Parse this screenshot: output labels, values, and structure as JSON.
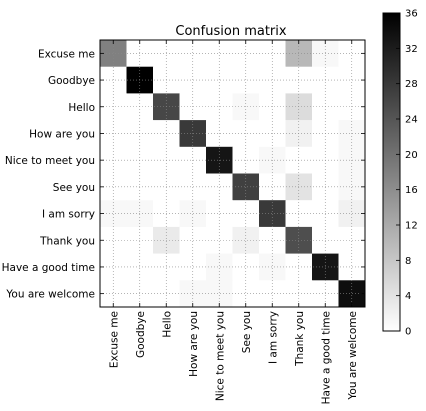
{
  "chart_data": {
    "type": "heatmap",
    "title": "Confusion matrix",
    "xlabel": "",
    "ylabel": "",
    "rows": [
      "Excuse me",
      "Goodbye",
      "Hello",
      "How are you",
      "Nice to meet you",
      "See you",
      "I am sorry",
      "Thank you",
      "Have a good time",
      "You are welcome"
    ],
    "columns": [
      "Excuse me",
      "Goodbye",
      "Hello",
      "How are you",
      "Nice to meet you",
      "See you",
      "I am sorry",
      "Thank you",
      "Have a good time",
      "You are welcome"
    ],
    "values": [
      [
        18,
        0,
        0,
        0,
        0,
        0,
        0,
        10,
        1,
        0
      ],
      [
        0,
        36,
        0,
        0,
        0,
        0,
        0,
        0,
        0,
        0
      ],
      [
        0,
        0,
        26,
        0,
        0,
        1,
        0,
        5,
        0,
        0
      ],
      [
        0,
        0,
        0,
        28,
        0,
        0,
        0,
        2,
        0,
        1
      ],
      [
        0,
        0,
        0,
        0,
        33,
        0,
        1,
        0,
        0,
        1
      ],
      [
        0,
        0,
        0,
        0,
        0,
        27,
        0,
        4,
        0,
        1
      ],
      [
        1,
        1,
        0,
        1,
        0,
        0,
        28,
        0,
        0,
        2
      ],
      [
        0,
        0,
        3,
        0,
        0,
        2,
        0,
        25,
        0,
        0
      ],
      [
        0,
        0,
        0,
        0,
        1,
        0,
        1,
        0,
        33,
        0
      ],
      [
        0,
        0,
        0,
        1,
        1,
        0,
        0,
        0,
        0,
        34
      ]
    ],
    "colorbar": {
      "min": 0,
      "max": 36,
      "ticks": [
        0,
        4,
        8,
        12,
        16,
        20,
        24,
        28,
        32,
        36
      ],
      "colormap": "binary (white to black)"
    },
    "grid": true
  }
}
